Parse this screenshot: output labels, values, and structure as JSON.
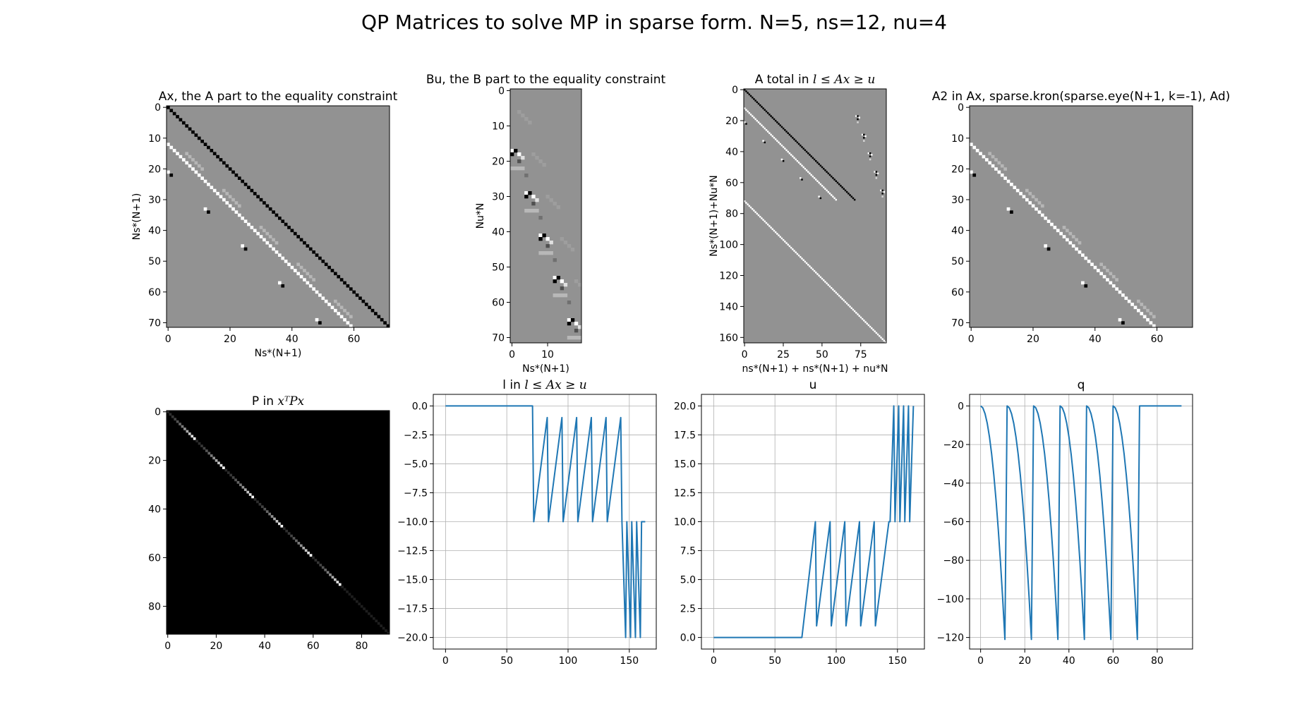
{
  "figure": {
    "suptitle": "QP Matrices to solve MP in sparse form. N=5, ns=12, nu=4"
  },
  "colors": {
    "line": "#1f77b4",
    "matrix_bg": "#929292",
    "grid": "#b0b0b0",
    "axes": "#000000",
    "page": "#ffffff"
  },
  "chart_data": [
    {
      "id": "ax",
      "type": "heatmap",
      "title": "Ax, the A part to the equality constraint",
      "xlabel": "Ns*(N+1)",
      "ylabel": "Ns*(N+1)",
      "shape": [
        72,
        72
      ],
      "colormap": "gray",
      "xticks": [
        0,
        20,
        40,
        60
      ],
      "yticks": [
        0,
        10,
        20,
        30,
        40,
        50,
        60,
        70
      ],
      "diagonals": [
        {
          "offset": 0,
          "value": "black"
        },
        {
          "offset": -12,
          "value": "white",
          "rows": [
            12,
            71
          ]
        }
      ],
      "blocks": [
        {
          "row": 12,
          "col": 0
        },
        {
          "row": 24,
          "col": 12
        },
        {
          "row": 36,
          "col": 24
        },
        {
          "row": 48,
          "col": 36
        },
        {
          "row": 60,
          "col": 48
        }
      ]
    },
    {
      "id": "bu",
      "type": "heatmap",
      "title": "Bu, the B part to the equality constraint",
      "xlabel": "Ns*(N+1)",
      "ylabel": "Nu*N",
      "shape": [
        72,
        20
      ],
      "colormap": "gray",
      "xticks": [
        0,
        10
      ],
      "yticks": [
        0,
        10,
        20,
        30,
        40,
        50,
        60,
        70
      ],
      "blocks": [
        {
          "row": 12,
          "col": 0
        },
        {
          "row": 24,
          "col": 4
        },
        {
          "row": 36,
          "col": 8
        },
        {
          "row": 48,
          "col": 12
        },
        {
          "row": 60,
          "col": 16
        }
      ]
    },
    {
      "id": "atotal",
      "type": "heatmap",
      "title_prefix": "A total in ",
      "title_math": "l ≤ Ax ≥ u",
      "xlabel": "ns*(N+1) + ns*(N+1) + nu*N",
      "ylabel": "Ns*(N+1)+Nu*N",
      "shape": [
        164,
        92
      ],
      "colormap": "gray",
      "xticks": [
        0,
        25,
        50,
        75
      ],
      "yticks": [
        0,
        20,
        40,
        60,
        80,
        100,
        120,
        140,
        160
      ],
      "diagonals": [
        {
          "offset": 0,
          "value": "black",
          "rows": [
            0,
            71
          ]
        },
        {
          "offset": -12,
          "value": "white",
          "rows": [
            12,
            71
          ]
        },
        {
          "offset": -72,
          "value": "white",
          "rows": [
            72,
            163
          ]
        }
      ]
    },
    {
      "id": "a2",
      "type": "heatmap",
      "title": "A2 in Ax, sparse.kron(sparse.eye(N+1, k=-1), Ad)",
      "shape": [
        72,
        72
      ],
      "colormap": "gray",
      "xticks": [
        0,
        20,
        40,
        60
      ],
      "yticks": [
        0,
        10,
        20,
        30,
        40,
        50,
        60,
        70
      ],
      "diagonals": [
        {
          "offset": -12,
          "value": "white",
          "rows": [
            12,
            71
          ]
        }
      ]
    },
    {
      "id": "p",
      "type": "heatmap",
      "title_prefix": "P in ",
      "title_math": "xᵀPx",
      "shape": [
        92,
        92
      ],
      "colormap": "gray",
      "background": "black",
      "xticks": [
        0,
        20,
        40,
        60,
        80
      ],
      "yticks": [
        0,
        20,
        40,
        60,
        80
      ],
      "diagonals": [
        {
          "offset": 0,
          "value": "decaying",
          "rows": [
            0,
            91
          ]
        }
      ]
    },
    {
      "id": "l",
      "type": "line",
      "title_prefix": "l in  ",
      "title_math": "l ≤ Ax ≥ u",
      "xlim": [
        -10,
        172
      ],
      "ylim": [
        -21,
        1
      ],
      "xticks": [
        0,
        50,
        100,
        150
      ],
      "yticks": [
        0.0,
        -2.5,
        -5.0,
        -7.5,
        -10.0,
        -12.5,
        -15.0,
        -17.5,
        -20.0
      ],
      "grid": true,
      "series": [
        {
          "x": [
            0,
            71,
            72,
            83,
            84,
            95,
            96,
            107,
            108,
            119,
            120,
            131,
            132,
            143,
            144,
            147,
            148,
            151,
            152,
            155,
            156,
            159,
            160,
            163
          ],
          "y": [
            0,
            0,
            -10,
            -1,
            -10,
            -1,
            -10,
            -1,
            -10,
            -1,
            -10,
            -1,
            -10,
            -1,
            -10,
            -20,
            -10,
            -20,
            -10,
            -20,
            -10,
            -20,
            -10,
            -10
          ]
        }
      ]
    },
    {
      "id": "u",
      "type": "line",
      "title": "u",
      "xlim": [
        -10,
        172
      ],
      "ylim": [
        -1,
        21
      ],
      "xticks": [
        0,
        50,
        100,
        150
      ],
      "yticks": [
        0.0,
        2.5,
        5.0,
        7.5,
        10.0,
        12.5,
        15.0,
        17.5,
        20.0
      ],
      "grid": true,
      "series": [
        {
          "x": [
            0,
            71,
            72,
            83,
            84,
            95,
            96,
            107,
            108,
            119,
            120,
            131,
            132,
            143,
            144,
            147,
            148,
            151,
            152,
            155,
            156,
            159,
            160,
            163
          ],
          "y": [
            0,
            0,
            0,
            10,
            1,
            10,
            1,
            10,
            1,
            10,
            1,
            10,
            1,
            10,
            10,
            20,
            10,
            20,
            10,
            20,
            10,
            20,
            10,
            20
          ]
        }
      ]
    },
    {
      "id": "q",
      "type": "line",
      "title": "q",
      "xlim": [
        -5,
        96
      ],
      "ylim": [
        -126,
        6
      ],
      "xticks": [
        0,
        20,
        40,
        60,
        80
      ],
      "yticks": [
        0,
        -20,
        -40,
        -60,
        -80,
        -100,
        -120
      ],
      "grid": true,
      "series": [
        {
          "x": [
            0,
            1,
            2,
            3,
            4,
            5,
            6,
            7,
            8,
            9,
            10,
            11,
            12,
            13,
            14,
            15,
            16,
            17,
            18,
            19,
            20,
            21,
            22,
            23,
            24,
            25,
            26,
            27,
            28,
            29,
            30,
            31,
            32,
            33,
            34,
            35,
            36,
            37,
            38,
            39,
            40,
            41,
            42,
            43,
            44,
            45,
            46,
            47,
            48,
            49,
            50,
            51,
            52,
            53,
            54,
            55,
            56,
            57,
            58,
            59,
            60,
            61,
            62,
            63,
            64,
            65,
            66,
            67,
            68,
            69,
            70,
            71,
            72,
            91
          ],
          "y": [
            0,
            -1,
            -4,
            -9,
            -16,
            -25,
            -36,
            -49,
            -64,
            -81,
            -100,
            -121,
            0,
            -1,
            -4,
            -9,
            -16,
            -25,
            -36,
            -49,
            -64,
            -81,
            -100,
            -121,
            0,
            -1,
            -4,
            -9,
            -16,
            -25,
            -36,
            -49,
            -64,
            -81,
            -100,
            -121,
            0,
            -1,
            -4,
            -9,
            -16,
            -25,
            -36,
            -49,
            -64,
            -81,
            -100,
            -121,
            0,
            -1,
            -4,
            -9,
            -16,
            -25,
            -36,
            -49,
            -64,
            -81,
            -100,
            -121,
            0,
            -1,
            -4,
            -9,
            -16,
            -25,
            -36,
            -49,
            -64,
            -81,
            -100,
            -121,
            0,
            0
          ]
        }
      ]
    }
  ]
}
